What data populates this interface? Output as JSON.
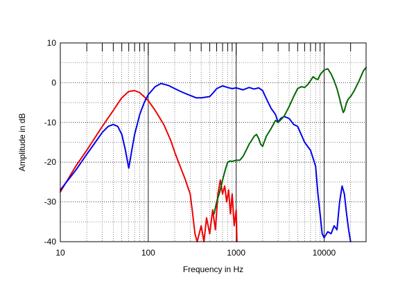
{
  "chart_data": {
    "type": "line",
    "xlabel": "Frequency in Hz",
    "ylabel": "Amplitude in dB",
    "xscale": "log",
    "xlim": [
      10,
      30000
    ],
    "ylim": [
      -40,
      10
    ],
    "x_tick_labels": [
      {
        "value": 10,
        "label": "10"
      },
      {
        "value": 100,
        "label": "100"
      },
      {
        "value": 1000,
        "label": "1000"
      },
      {
        "value": 10000,
        "label": "10000"
      }
    ],
    "y_tick_labels": [
      {
        "value": 10,
        "label": "10"
      },
      {
        "value": 0,
        "label": "0"
      },
      {
        "value": -10,
        "label": "-10"
      },
      {
        "value": -20,
        "label": "-20"
      },
      {
        "value": -30,
        "label": "-30"
      },
      {
        "value": -40,
        "label": "-40"
      }
    ],
    "grid": true,
    "series": [
      {
        "color": "#ee0000",
        "points": [
          [
            10,
            -27.5
          ],
          [
            15,
            -21
          ],
          [
            20,
            -17
          ],
          [
            30,
            -11
          ],
          [
            40,
            -7
          ],
          [
            50,
            -3.8
          ],
          [
            60,
            -2.2
          ],
          [
            70,
            -2
          ],
          [
            80,
            -2.5
          ],
          [
            100,
            -4.5
          ],
          [
            120,
            -7
          ],
          [
            150,
            -10.5
          ],
          [
            180,
            -14.5
          ],
          [
            200,
            -17.5
          ],
          [
            230,
            -21
          ],
          [
            260,
            -24
          ],
          [
            300,
            -28
          ],
          [
            320,
            -33
          ],
          [
            340,
            -38
          ],
          [
            360,
            -40
          ],
          [
            400,
            -36
          ],
          [
            430,
            -40
          ],
          [
            460,
            -34
          ],
          [
            500,
            -38
          ],
          [
            540,
            -32
          ],
          [
            580,
            -37
          ],
          [
            620,
            -28
          ],
          [
            660,
            -24.5
          ],
          [
            700,
            -28
          ],
          [
            740,
            -26
          ],
          [
            780,
            -30
          ],
          [
            820,
            -27
          ],
          [
            860,
            -33
          ],
          [
            900,
            -28
          ],
          [
            950,
            -36
          ],
          [
            1000,
            -32
          ],
          [
            1020,
            -40
          ]
        ]
      },
      {
        "color": "#0000ee",
        "points": [
          [
            10,
            -27
          ],
          [
            15,
            -22
          ],
          [
            20,
            -18
          ],
          [
            25,
            -15
          ],
          [
            30,
            -12.5
          ],
          [
            35,
            -11
          ],
          [
            40,
            -10.5
          ],
          [
            45,
            -11
          ],
          [
            50,
            -13
          ],
          [
            55,
            -17
          ],
          [
            60,
            -21.5
          ],
          [
            65,
            -17
          ],
          [
            70,
            -13
          ],
          [
            80,
            -8
          ],
          [
            90,
            -5
          ],
          [
            100,
            -3
          ],
          [
            120,
            -1
          ],
          [
            140,
            -0.2
          ],
          [
            170,
            -0.7
          ],
          [
            200,
            -1.5
          ],
          [
            250,
            -2.5
          ],
          [
            300,
            -3.2
          ],
          [
            350,
            -3.8
          ],
          [
            400,
            -3.8
          ],
          [
            500,
            -3.5
          ],
          [
            550,
            -2.5
          ],
          [
            600,
            -1.5
          ],
          [
            700,
            -0.8
          ],
          [
            800,
            -1.2
          ],
          [
            900,
            -1.5
          ],
          [
            1000,
            -1.3
          ],
          [
            1200,
            -1.8
          ],
          [
            1400,
            -1.2
          ],
          [
            1600,
            -1.6
          ],
          [
            1800,
            -1.3
          ],
          [
            2000,
            -2
          ],
          [
            2200,
            -4
          ],
          [
            2500,
            -6.5
          ],
          [
            2800,
            -8
          ],
          [
            3000,
            -10
          ],
          [
            3200,
            -9
          ],
          [
            3500,
            -8.5
          ],
          [
            4000,
            -9
          ],
          [
            4500,
            -10.5
          ],
          [
            5000,
            -11
          ],
          [
            6000,
            -15
          ],
          [
            7000,
            -17
          ],
          [
            8000,
            -21
          ],
          [
            8500,
            -28
          ],
          [
            9000,
            -33
          ],
          [
            9500,
            -38
          ],
          [
            10000,
            -39
          ],
          [
            11000,
            -37.5
          ],
          [
            12000,
            -38
          ],
          [
            13000,
            -36
          ],
          [
            14000,
            -37
          ],
          [
            15000,
            -30
          ],
          [
            16000,
            -26
          ],
          [
            17000,
            -28
          ],
          [
            18000,
            -33
          ],
          [
            19000,
            -37
          ],
          [
            20000,
            -40
          ]
        ]
      },
      {
        "color": "#006600",
        "points": [
          [
            560,
            -33
          ],
          [
            600,
            -30
          ],
          [
            650,
            -27.5
          ],
          [
            700,
            -24.5
          ],
          [
            750,
            -22
          ],
          [
            800,
            -20
          ],
          [
            850,
            -19.7
          ],
          [
            900,
            -19.8
          ],
          [
            1000,
            -19.5
          ],
          [
            1100,
            -19.5
          ],
          [
            1200,
            -18.5
          ],
          [
            1300,
            -17
          ],
          [
            1400,
            -15.5
          ],
          [
            1500,
            -14.5
          ],
          [
            1600,
            -13.5
          ],
          [
            1700,
            -13
          ],
          [
            1800,
            -14
          ],
          [
            1900,
            -15.5
          ],
          [
            2000,
            -16
          ],
          [
            2200,
            -13.5
          ],
          [
            2500,
            -11.5
          ],
          [
            2800,
            -9.5
          ],
          [
            3000,
            -10
          ],
          [
            3500,
            -8.5
          ],
          [
            4000,
            -6
          ],
          [
            4500,
            -3.5
          ],
          [
            5000,
            -1.5
          ],
          [
            5500,
            -1
          ],
          [
            6000,
            -1.2
          ],
          [
            6500,
            -0.5
          ],
          [
            7000,
            0.5
          ],
          [
            7500,
            1.5
          ],
          [
            8000,
            1
          ],
          [
            8500,
            0.8
          ],
          [
            9000,
            2
          ],
          [
            10000,
            3.2
          ],
          [
            11000,
            3.5
          ],
          [
            12000,
            2.2
          ],
          [
            13000,
            0.5
          ],
          [
            14000,
            -1.5
          ],
          [
            15000,
            -4
          ],
          [
            16000,
            -6.5
          ],
          [
            16500,
            -7.5
          ],
          [
            17000,
            -7
          ],
          [
            18000,
            -5
          ],
          [
            19000,
            -4
          ],
          [
            20000,
            -3.5
          ],
          [
            22000,
            -2
          ],
          [
            25000,
            0.5
          ],
          [
            28000,
            3
          ],
          [
            30000,
            3.8
          ]
        ]
      }
    ]
  }
}
